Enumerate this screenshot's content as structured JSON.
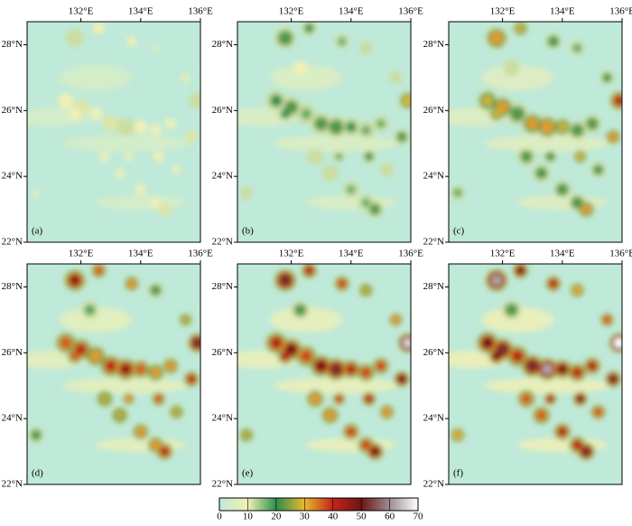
{
  "panels": [
    {
      "label": "(a)"
    },
    {
      "label": "(b)"
    },
    {
      "label": "(c)"
    },
    {
      "label": "(d)"
    },
    {
      "label": "(e)"
    },
    {
      "label": "(f)"
    }
  ],
  "xlim": [
    130.2,
    136
  ],
  "ylim": [
    22,
    28.7
  ],
  "xticks": [
    {
      "value": 132,
      "label": "132°E"
    },
    {
      "value": 134,
      "label": "134°E"
    },
    {
      "value": 136,
      "label": "136°E"
    }
  ],
  "yticks": [
    {
      "value": 22,
      "label": "22°N"
    },
    {
      "value": 24,
      "label": "24°N"
    },
    {
      "value": 26,
      "label": "26°N"
    },
    {
      "value": 28,
      "label": "28°N"
    }
  ],
  "colorbar": {
    "lim": [
      0,
      70
    ],
    "ticks": [
      0,
      10,
      20,
      30,
      40,
      50,
      60,
      70
    ],
    "colors": [
      "#bfe9d8",
      "#f2f0b4",
      "#2f8f4e",
      "#e8b92e",
      "#c2261a",
      "#6e1512",
      "#9c8d94",
      "#ffffff"
    ]
  }
}
